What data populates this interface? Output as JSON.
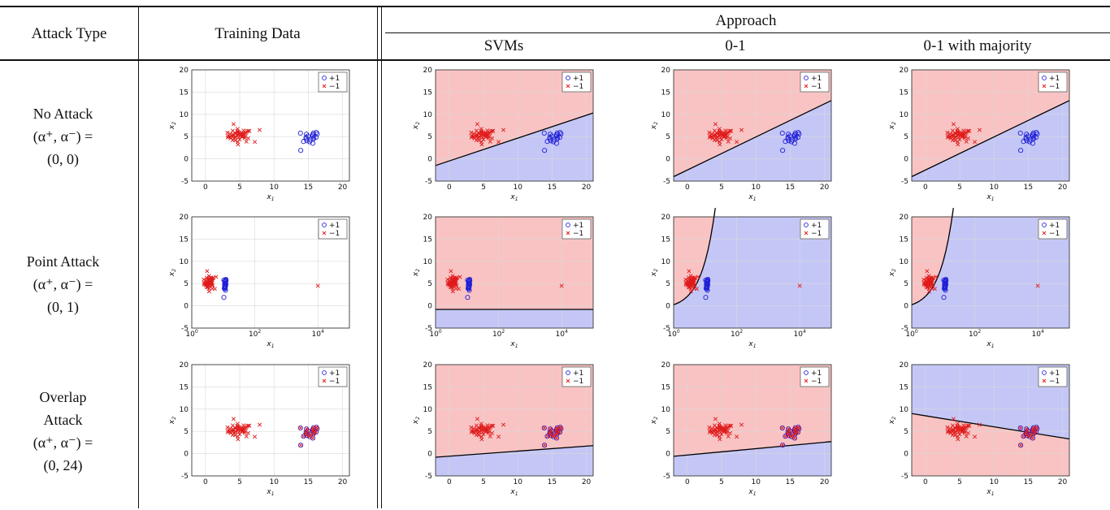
{
  "table": {
    "headers": {
      "attack_type": "Attack Type",
      "training_data": "Training Data",
      "approach": "Approach",
      "approaches": [
        "SVMs",
        "0-1",
        "0-1 with majority"
      ]
    },
    "rows": [
      {
        "id": "no",
        "lines": [
          "No Attack",
          "(α⁺, α⁻) =",
          "(0, 0)"
        ]
      },
      {
        "id": "point",
        "lines": [
          "Point Attack",
          "(α⁺, α⁻) =",
          "(0, 1)"
        ]
      },
      {
        "id": "overlap",
        "lines": [
          "Overlap",
          "Attack",
          "(α⁺, α⁻) =",
          "(0, 24)"
        ]
      }
    ]
  },
  "colors": {
    "positive": "#1f1fd6",
    "negative": "#e01b1b",
    "region_negative": "#f9c3c3",
    "region_positive": "#c4c7f6",
    "boundary": "#000000"
  },
  "legend": {
    "positive": "+1",
    "negative": "−1"
  },
  "chart_data": [
    {
      "type": "scatter",
      "row": "no",
      "panel": "training",
      "xscale": "linear",
      "xlim": [
        -2,
        21
      ],
      "ylim": [
        -5,
        20
      ],
      "xticks": [
        0,
        5,
        10,
        15,
        20
      ],
      "yticks": [
        -5,
        0,
        5,
        10,
        15,
        20
      ],
      "xlabel": "x1",
      "ylabel": "x2",
      "legend": "top-right",
      "grid": true,
      "series": [
        {
          "name": "+1",
          "cluster": "positive"
        },
        {
          "name": "−1",
          "cluster": "negative"
        }
      ],
      "regions": null
    },
    {
      "type": "scatter",
      "row": "no",
      "panel": "SVMs",
      "xscale": "linear",
      "xlim": [
        -2,
        21
      ],
      "ylim": [
        -5,
        20
      ],
      "xticks": [
        0,
        5,
        10,
        15,
        20
      ],
      "yticks": [
        -5,
        0,
        5,
        10,
        15,
        20
      ],
      "xlabel": "x1",
      "ylabel": "x2",
      "legend": "top-right",
      "grid": true,
      "boundary": {
        "kind": "line",
        "points": [
          [
            -2,
            -1.5
          ],
          [
            21,
            10.3
          ]
        ]
      },
      "regions": {
        "above": "negative",
        "below": "positive"
      }
    },
    {
      "type": "scatter",
      "row": "no",
      "panel": "0-1",
      "xscale": "linear",
      "xlim": [
        -2,
        21
      ],
      "ylim": [
        -5,
        20
      ],
      "xticks": [
        0,
        5,
        10,
        15,
        20
      ],
      "yticks": [
        -5,
        0,
        5,
        10,
        15,
        20
      ],
      "xlabel": "x1",
      "ylabel": "x2",
      "legend": "top-right",
      "grid": true,
      "boundary": {
        "kind": "line",
        "points": [
          [
            -2,
            -4
          ],
          [
            21,
            13.1
          ]
        ]
      },
      "regions": {
        "above": "negative",
        "below": "positive"
      }
    },
    {
      "type": "scatter",
      "row": "no",
      "panel": "0-1 with majority",
      "xscale": "linear",
      "xlim": [
        -2,
        21
      ],
      "ylim": [
        -5,
        20
      ],
      "xticks": [
        0,
        5,
        10,
        15,
        20
      ],
      "yticks": [
        -5,
        0,
        5,
        10,
        15,
        20
      ],
      "xlabel": "x1",
      "ylabel": "x2",
      "legend": "top-right",
      "grid": true,
      "boundary": {
        "kind": "line",
        "points": [
          [
            -2,
            -4
          ],
          [
            21,
            13.1
          ]
        ]
      },
      "regions": {
        "above": "negative",
        "below": "positive"
      }
    },
    {
      "type": "scatter",
      "row": "point",
      "panel": "training",
      "xscale": "log",
      "xlim": [
        1,
        100000
      ],
      "ylim": [
        -5,
        20
      ],
      "xticks": [
        1,
        100,
        10000
      ],
      "yticks": [
        -5,
        0,
        5,
        10,
        15,
        20
      ],
      "xlabel": "x1",
      "ylabel": "x2",
      "legend": "top-right",
      "grid": true,
      "outlier": [
        10000,
        4.5
      ],
      "regions": null
    },
    {
      "type": "scatter",
      "row": "point",
      "panel": "SVMs",
      "xscale": "log",
      "xlim": [
        1,
        100000
      ],
      "ylim": [
        -5,
        20
      ],
      "xticks": [
        1,
        100,
        10000
      ],
      "yticks": [
        -5,
        0,
        5,
        10,
        15,
        20
      ],
      "xlabel": "x1",
      "ylabel": "x2",
      "legend": "top-right",
      "grid": true,
      "outlier": [
        10000,
        4.5
      ],
      "boundary": {
        "kind": "line",
        "points": [
          [
            1,
            -0.8
          ],
          [
            100000,
            -0.8
          ]
        ]
      },
      "regions": {
        "above": "negative",
        "below": "positive"
      }
    },
    {
      "type": "scatter",
      "row": "point",
      "panel": "0-1",
      "xscale": "log",
      "xlim": [
        1,
        100000
      ],
      "ylim": [
        -5,
        20
      ],
      "xticks": [
        1,
        100,
        10000
      ],
      "yticks": [
        -5,
        0,
        5,
        10,
        15,
        20
      ],
      "xlabel": "x1",
      "ylabel": "x2",
      "legend": "top-right",
      "grid": true,
      "outlier": [
        10000,
        4.5
      ],
      "boundary": {
        "kind": "linear-in-data",
        "a": 1.09,
        "b": -0.85
      },
      "regions": {
        "above": "negative",
        "below": "positive"
      }
    },
    {
      "type": "scatter",
      "row": "point",
      "panel": "0-1 with majority",
      "xscale": "log",
      "xlim": [
        1,
        100000
      ],
      "ylim": [
        -5,
        20
      ],
      "xticks": [
        1,
        100,
        10000
      ],
      "yticks": [
        -5,
        0,
        5,
        10,
        15,
        20
      ],
      "xlabel": "x1",
      "ylabel": "x2",
      "legend": "top-right",
      "grid": true,
      "outlier": [
        10000,
        4.5
      ],
      "boundary": {
        "kind": "linear-in-data",
        "a": 1.09,
        "b": -0.85
      },
      "regions": {
        "above": "negative",
        "below": "positive"
      }
    },
    {
      "type": "scatter",
      "row": "overlap",
      "panel": "training",
      "xscale": "linear",
      "xlim": [
        -2,
        21
      ],
      "ylim": [
        -5,
        20
      ],
      "xticks": [
        0,
        5,
        10,
        15,
        20
      ],
      "yticks": [
        -5,
        0,
        5,
        10,
        15,
        20
      ],
      "xlabel": "x1",
      "ylabel": "x2",
      "legend": "top-right",
      "grid": true,
      "overlap": true,
      "regions": null
    },
    {
      "type": "scatter",
      "row": "overlap",
      "panel": "SVMs",
      "xscale": "linear",
      "xlim": [
        -2,
        21
      ],
      "ylim": [
        -5,
        20
      ],
      "xticks": [
        0,
        5,
        10,
        15,
        20
      ],
      "yticks": [
        -5,
        0,
        5,
        10,
        15,
        20
      ],
      "xlabel": "x1",
      "ylabel": "x2",
      "legend": "top-right",
      "grid": true,
      "overlap": true,
      "boundary": {
        "kind": "line",
        "points": [
          [
            -2,
            -0.8
          ],
          [
            21,
            1.8
          ]
        ]
      },
      "regions": {
        "above": "negative",
        "below": "positive"
      }
    },
    {
      "type": "scatter",
      "row": "overlap",
      "panel": "0-1",
      "xscale": "linear",
      "xlim": [
        -2,
        21
      ],
      "ylim": [
        -5,
        20
      ],
      "xticks": [
        0,
        5,
        10,
        15,
        20
      ],
      "yticks": [
        -5,
        0,
        5,
        10,
        15,
        20
      ],
      "xlabel": "x1",
      "ylabel": "x2",
      "legend": "top-right",
      "grid": true,
      "overlap": true,
      "boundary": {
        "kind": "line",
        "points": [
          [
            -2,
            -0.6
          ],
          [
            21,
            2.7
          ]
        ]
      },
      "regions": {
        "above": "negative",
        "below": "positive"
      }
    },
    {
      "type": "scatter",
      "row": "overlap",
      "panel": "0-1 with majority",
      "xscale": "linear",
      "xlim": [
        -2,
        21
      ],
      "ylim": [
        -5,
        20
      ],
      "xticks": [
        0,
        5,
        10,
        15,
        20
      ],
      "yticks": [
        -5,
        0,
        5,
        10,
        15,
        20
      ],
      "xlabel": "x1",
      "ylabel": "x2",
      "legend": "top-right",
      "grid": true,
      "overlap": true,
      "boundary": {
        "kind": "line",
        "points": [
          [
            -2,
            9
          ],
          [
            21,
            3.3
          ]
        ]
      },
      "regions": {
        "above": "positive",
        "below": "negative"
      }
    }
  ]
}
